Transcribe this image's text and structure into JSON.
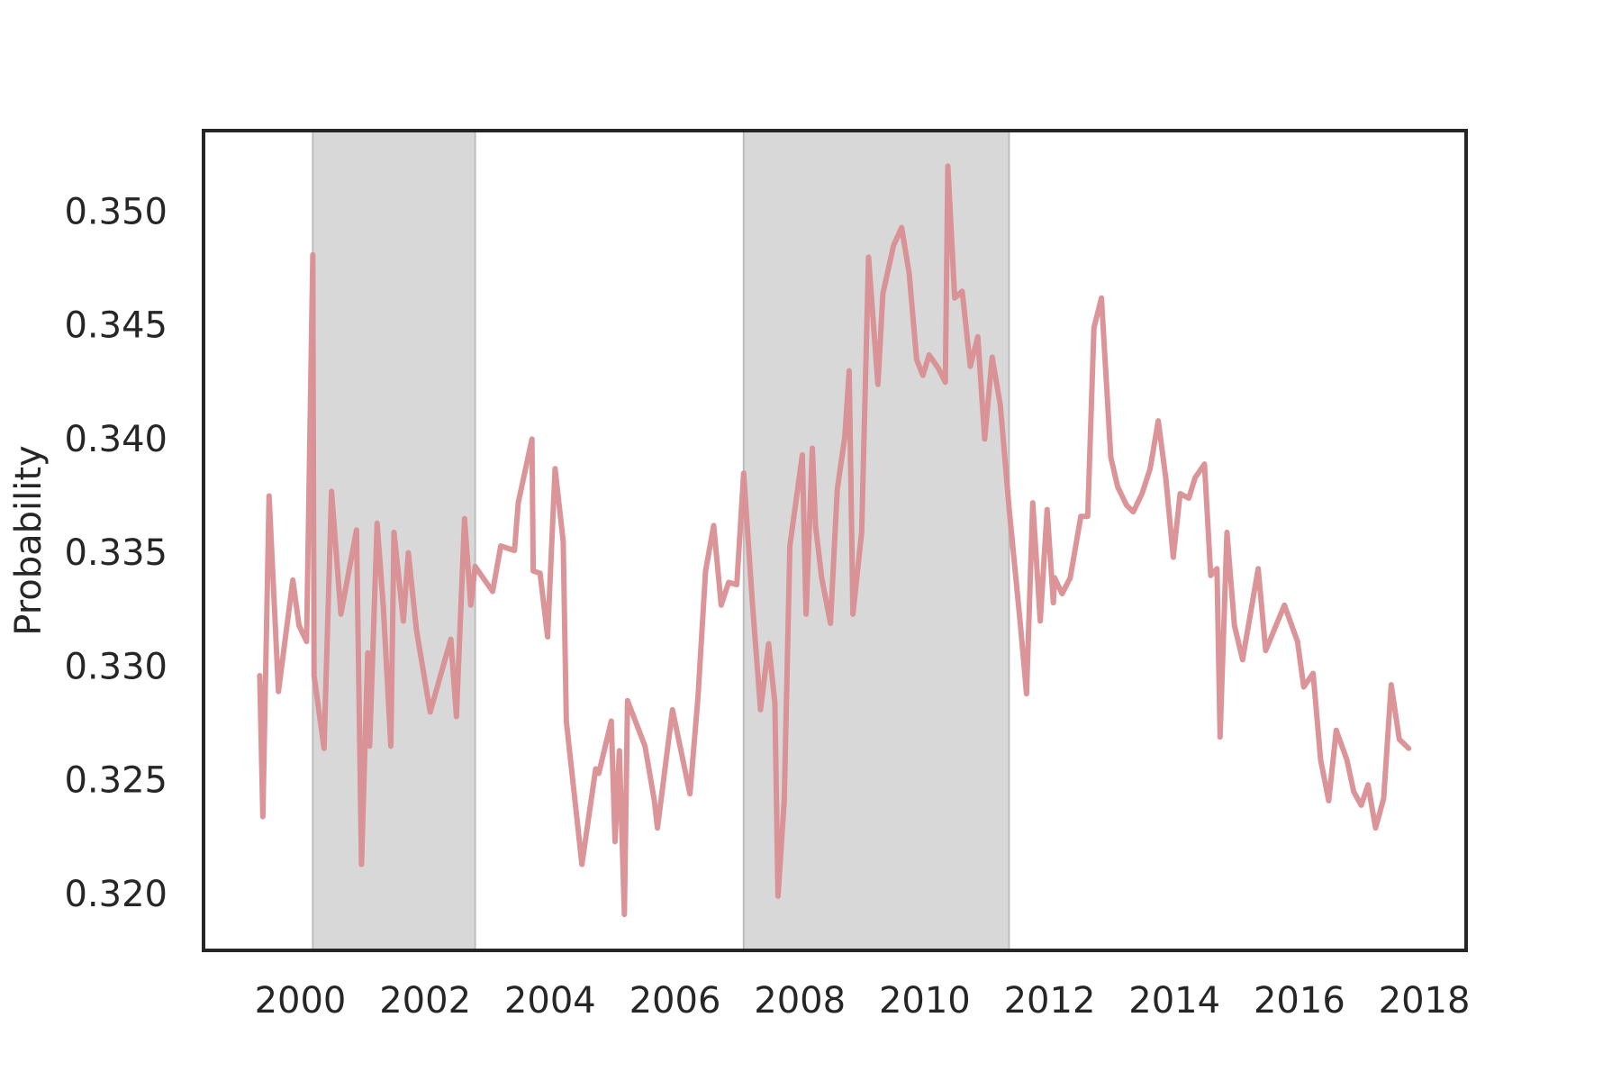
{
  "chart_data": {
    "type": "line",
    "y_label": "Probability",
    "color": "#d98e92",
    "shade_color": "#d8d8d8",
    "shaded_spans": [
      [
        2000.2,
        2002.8
      ],
      [
        2007.1,
        2011.35
      ]
    ],
    "xlim": [
      1998.45,
      2018.67
    ],
    "ylim": [
      0.31762,
      0.35366
    ],
    "xticks": [
      2000,
      2002,
      2004,
      2006,
      2008,
      2010,
      2012,
      2014,
      2016,
      2018
    ],
    "yticks": [
      {
        "value": 0.32,
        "label": "0.320"
      },
      {
        "value": 0.325,
        "label": "0.325"
      },
      {
        "value": 0.33,
        "label": "0.330"
      },
      {
        "value": 0.335,
        "label": "0.335"
      },
      {
        "value": 0.34,
        "label": "0.340"
      },
      {
        "value": 0.345,
        "label": "0.345"
      },
      {
        "value": 0.35,
        "label": "0.350"
      }
    ],
    "grid": false,
    "x": [
      1999.35,
      1999.4,
      1999.5,
      1999.65,
      1999.88,
      1999.98,
      2000.1,
      2000.2,
      2000.22,
      2000.38,
      2000.5,
      2000.65,
      2000.9,
      2000.98,
      2001.08,
      2001.11,
      2001.23,
      2001.33,
      2001.45,
      2001.5,
      2001.65,
      2001.73,
      2001.86,
      2002.08,
      2002.41,
      2002.5,
      2002.63,
      2002.73,
      2002.8,
      2003.08,
      2003.21,
      2003.43,
      2003.49,
      2003.71,
      2003.73,
      2003.84,
      2003.96,
      2004.08,
      2004.21,
      2004.26,
      2004.51,
      2004.73,
      2004.78,
      2004.98,
      2005.04,
      2005.11,
      2005.19,
      2005.24,
      2005.52,
      2005.67,
      2005.72,
      2005.96,
      2006.24,
      2006.37,
      2006.49,
      2006.62,
      2006.74,
      2006.86,
      2006.99,
      2007.1,
      2007.24,
      2007.37,
      2007.5,
      2007.6,
      2007.65,
      2007.75,
      2007.84,
      2008.04,
      2008.1,
      2008.2,
      2008.25,
      2008.35,
      2008.49,
      2008.6,
      2008.72,
      2008.79,
      2008.85,
      2008.99,
      2009.1,
      2009.25,
      2009.33,
      2009.5,
      2009.63,
      2009.75,
      2009.87,
      2009.97,
      2010.07,
      2010.22,
      2010.33,
      2010.37,
      2010.48,
      2010.6,
      2010.73,
      2010.85,
      2010.96,
      2011.08,
      2011.21,
      2011.35,
      2011.53,
      2011.63,
      2011.73,
      2011.85,
      2011.96,
      2012.06,
      2012.08,
      2012.2,
      2012.33,
      2012.5,
      2012.61,
      2012.71,
      2012.83,
      2012.98,
      2013.09,
      2013.23,
      2013.34,
      2013.48,
      2013.61,
      2013.74,
      2013.86,
      2013.98,
      2014.09,
      2014.23,
      2014.33,
      2014.48,
      2014.58,
      2014.68,
      2014.73,
      2014.84,
      2014.96,
      2015.09,
      2015.34,
      2015.46,
      2015.76,
      2015.97,
      2016.07,
      2016.22,
      2016.34,
      2016.47,
      2016.59,
      2016.76,
      2016.87,
      2016.99,
      2017.1,
      2017.22,
      2017.35,
      2017.47,
      2017.6,
      2017.75
    ],
    "values": [
      0.3297,
      0.3235,
      0.3376,
      0.329,
      0.3339,
      0.3319,
      0.3312,
      0.3482,
      0.3297,
      0.3265,
      0.3378,
      0.3324,
      0.3361,
      0.3214,
      0.3307,
      0.3266,
      0.3364,
      0.3327,
      0.3266,
      0.336,
      0.3321,
      0.3351,
      0.3317,
      0.3281,
      0.3313,
      0.3279,
      0.3366,
      0.3328,
      0.3345,
      0.3334,
      0.3354,
      0.3352,
      0.3373,
      0.3401,
      0.3343,
      0.3342,
      0.3314,
      0.3388,
      0.3356,
      0.3277,
      0.3214,
      0.3256,
      0.3254,
      0.3277,
      0.3224,
      0.3264,
      0.3192,
      0.3286,
      0.3266,
      0.3242,
      0.323,
      0.3282,
      0.3245,
      0.3288,
      0.3343,
      0.3363,
      0.3328,
      0.3338,
      0.3337,
      0.3386,
      0.3329,
      0.3282,
      0.3311,
      0.3285,
      0.32,
      0.3242,
      0.3354,
      0.3394,
      0.3324,
      0.3397,
      0.3363,
      0.334,
      0.332,
      0.3379,
      0.3402,
      0.3431,
      0.3324,
      0.336,
      0.3481,
      0.3425,
      0.3465,
      0.3486,
      0.3494,
      0.3474,
      0.3436,
      0.3429,
      0.3438,
      0.3432,
      0.3426,
      0.3521,
      0.3463,
      0.3466,
      0.3433,
      0.3446,
      0.3401,
      0.3437,
      0.3416,
      0.3371,
      0.332,
      0.3289,
      0.3373,
      0.3321,
      0.337,
      0.3329,
      0.334,
      0.3333,
      0.334,
      0.3367,
      0.3367,
      0.345,
      0.3463,
      0.3393,
      0.338,
      0.3372,
      0.3369,
      0.3377,
      0.3388,
      0.3409,
      0.3384,
      0.3349,
      0.3377,
      0.3375,
      0.3384,
      0.339,
      0.3341,
      0.3344,
      0.327,
      0.336,
      0.3319,
      0.3304,
      0.3344,
      0.3308,
      0.3328,
      0.3312,
      0.3292,
      0.3298,
      0.326,
      0.3242,
      0.3273,
      0.326,
      0.3246,
      0.324,
      0.3249,
      0.323,
      0.3243,
      0.3293,
      0.3269,
      0.3265
    ]
  }
}
